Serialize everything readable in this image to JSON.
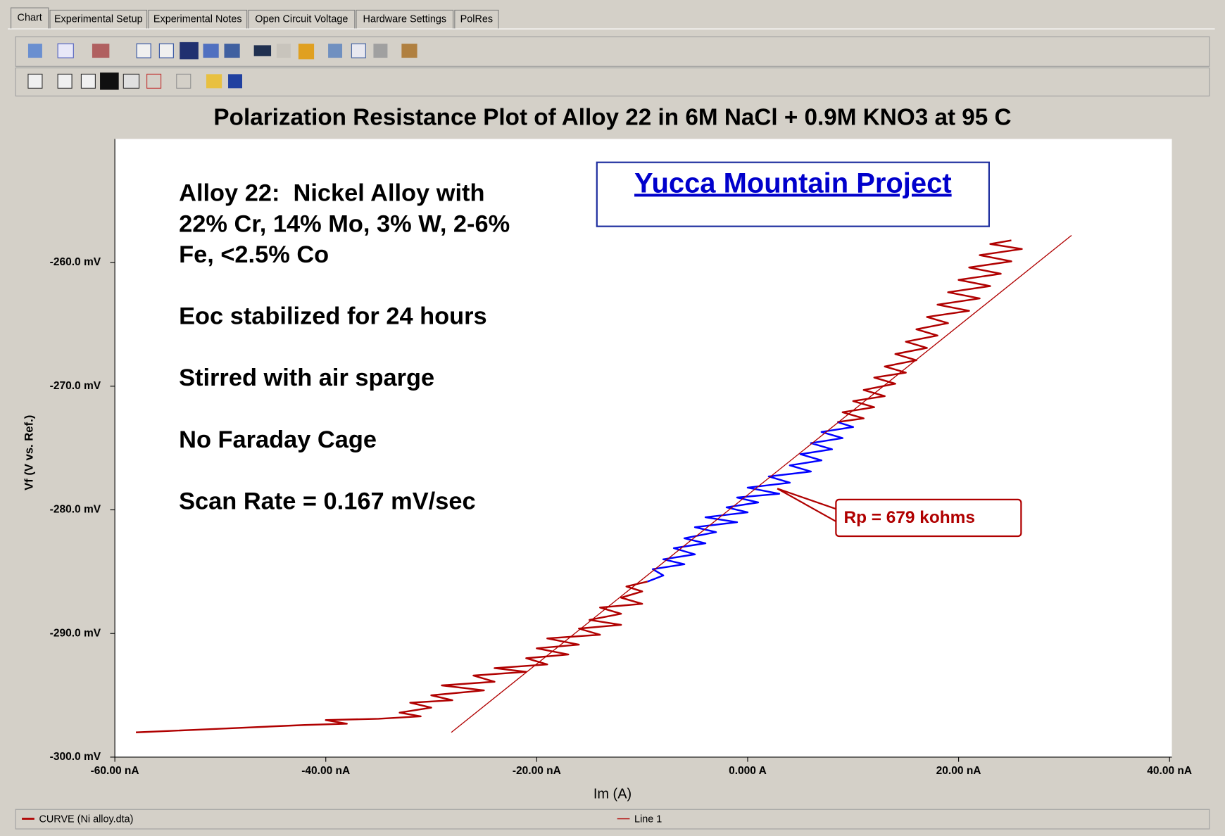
{
  "tabs": [
    "Chart",
    "Experimental Setup",
    "Experimental Notes",
    "Open Circuit Voltage",
    "Hardware Settings",
    "PolRes"
  ],
  "chart_data": {
    "type": "line",
    "title": "Polarization Resistance Plot of Alloy 22 in 6M NaCl + 0.9M KNO3 at 95 C",
    "xlabel": "Im (A)",
    "ylabel": "Vf (V vs. Ref.)",
    "xlim": [
      -60,
      40
    ],
    "ylim": [
      -300,
      -250
    ],
    "xticks": [
      {
        "value": -60,
        "label": "-60.00 nA"
      },
      {
        "value": -40,
        "label": "-40.00 nA"
      },
      {
        "value": -20,
        "label": "-20.00 nA"
      },
      {
        "value": 0,
        "label": "0.000 A"
      },
      {
        "value": 20,
        "label": "20.00 nA"
      },
      {
        "value": 40,
        "label": "40.00 nA"
      }
    ],
    "yticks": [
      {
        "value": -300,
        "label": "-300.0 mV"
      },
      {
        "value": -290,
        "label": "-290.0 mV"
      },
      {
        "value": -280,
        "label": "-280.0 mV"
      },
      {
        "value": -270,
        "label": "-270.0 mV"
      },
      {
        "value": -260,
        "label": "-260.0 mV"
      }
    ],
    "series": [
      {
        "name": "CURVE (Ni alloy.dta)",
        "color": "#b00000",
        "x": [
          -58,
          -50,
          -42,
          -38,
          -40,
          -35,
          -31,
          -33,
          -30,
          -32,
          -28,
          -30,
          -25,
          -29,
          -24,
          -26,
          -21,
          -24,
          -19,
          -21,
          -17,
          -20,
          -16,
          -19,
          -14,
          -16,
          -12,
          -15,
          -12,
          -14,
          -10,
          -12,
          -10,
          -11.5,
          -9.5,
          null,
          8.5,
          11,
          9,
          12,
          10,
          13,
          11,
          14,
          12,
          15,
          13,
          16,
          14,
          17,
          15,
          18,
          16,
          19,
          17,
          21,
          18,
          22,
          19,
          23,
          20,
          24,
          21,
          25,
          22,
          26,
          23,
          25
        ],
        "y": [
          -298.0,
          -297.7,
          -297.4,
          -297.3,
          -297.0,
          -296.9,
          -296.7,
          -296.4,
          -296.0,
          -295.6,
          -295.4,
          -295.0,
          -294.6,
          -294.2,
          -293.9,
          -293.4,
          -293.1,
          -292.8,
          -292.5,
          -292.0,
          -291.7,
          -291.2,
          -290.9,
          -290.4,
          -290.1,
          -289.6,
          -289.3,
          -288.9,
          -288.4,
          -287.9,
          -287.6,
          -287.1,
          -286.6,
          -286.2,
          -285.8,
          null,
          -272.9,
          -272.6,
          -272.1,
          -271.7,
          -271.2,
          -270.8,
          -270.3,
          -269.8,
          -269.3,
          -268.9,
          -268.4,
          -267.9,
          -267.4,
          -266.9,
          -266.4,
          -265.9,
          -265.4,
          -264.9,
          -264.4,
          -263.9,
          -263.4,
          -262.9,
          -262.4,
          -261.9,
          -261.4,
          -260.9,
          -260.4,
          -259.9,
          -259.4,
          -258.9,
          -258.5,
          -258.2
        ]
      },
      {
        "color": "#0000ff",
        "x": [
          -9.5,
          -8,
          -9,
          -6,
          -8,
          -5,
          -7,
          -4,
          -6,
          -3,
          -5,
          -1,
          -4,
          0,
          -2,
          1,
          -1,
          3,
          0,
          4,
          2,
          6,
          4,
          7,
          5,
          8,
          6,
          9,
          7,
          10,
          8.5
        ],
        "y": [
          -285.8,
          -285.3,
          -284.8,
          -284.4,
          -284.0,
          -283.6,
          -283.1,
          -282.7,
          -282.3,
          -281.8,
          -281.4,
          -281.0,
          -280.6,
          -280.2,
          -279.8,
          -279.4,
          -279.0,
          -278.7,
          -278.2,
          -277.8,
          -277.3,
          -276.9,
          -276.4,
          -276.0,
          -275.5,
          -275.1,
          -274.6,
          -274.2,
          -273.7,
          -273.3,
          -272.9
        ]
      },
      {
        "name": "Line 1",
        "color": "#b00000",
        "x": [
          -28.1,
          30.7
        ],
        "y": [
          -298,
          -257.8
        ]
      }
    ],
    "notes": [
      "Alloy 22:  Nickel Alloy with",
      "22% Cr, 14% Mo, 3% W, 2-6%",
      "Fe, <2.5% Co",
      "Eoc stabilized for 24 hours",
      "Stirred with air sparge",
      "No Faraday Cage",
      "Scan Rate = 0.167 mV/sec"
    ],
    "project": "Yucca Mountain Project",
    "rp_annotation": "Rp = 679 kohms"
  }
}
